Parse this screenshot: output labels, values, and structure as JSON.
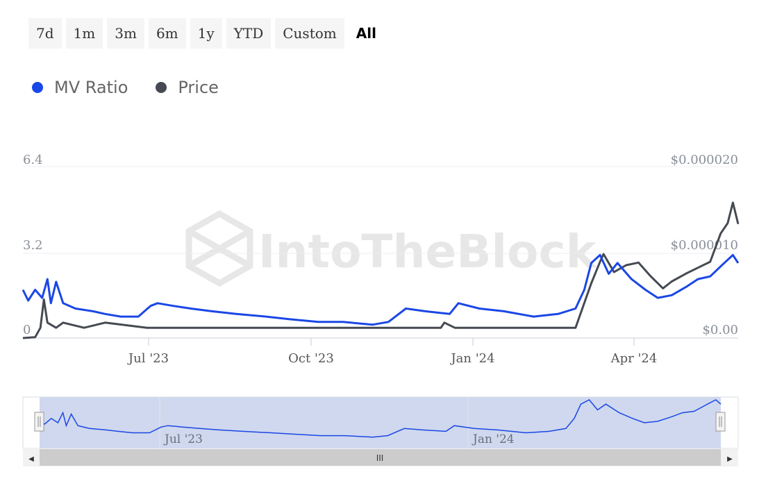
{
  "range_selector": {
    "buttons": [
      "7d",
      "1m",
      "3m",
      "6m",
      "1y",
      "YTD",
      "Custom",
      "All"
    ],
    "active": "All"
  },
  "watermark": "IntoTheBlock",
  "colors": {
    "mv_ratio": "#1a47e5",
    "price": "#454a52",
    "navigator_fill": "#cfd8ee"
  },
  "chart_data": {
    "type": "line",
    "x_tick_labels": [
      "Jul '23",
      "Oct '23",
      "Jan '24",
      "Apr '24"
    ],
    "y_left": {
      "ticks": [
        "0",
        "3.2",
        "6.4"
      ],
      "range": [
        0,
        6.4
      ]
    },
    "y_right": {
      "ticks": [
        "$0.00",
        "$0.000010",
        "$0.000020"
      ],
      "range": [
        0,
        2e-05
      ]
    },
    "series": [
      {
        "name": "MV Ratio",
        "axis": "left",
        "x": [
          "2023-04-15",
          "2023-04-18",
          "2023-04-22",
          "2023-04-26",
          "2023-04-29",
          "2023-05-01",
          "2023-05-04",
          "2023-05-08",
          "2023-05-15",
          "2023-05-25",
          "2023-06-01",
          "2023-06-10",
          "2023-06-20",
          "2023-06-27",
          "2023-07-01",
          "2023-07-10",
          "2023-07-20",
          "2023-08-01",
          "2023-08-15",
          "2023-09-01",
          "2023-09-15",
          "2023-10-01",
          "2023-10-15",
          "2023-11-01",
          "2023-11-10",
          "2023-11-20",
          "2023-12-01",
          "2023-12-15",
          "2023-12-20",
          "2024-01-01",
          "2024-01-15",
          "2024-02-01",
          "2024-02-15",
          "2024-02-25",
          "2024-03-01",
          "2024-03-05",
          "2024-03-10",
          "2024-03-15",
          "2024-03-20",
          "2024-03-28",
          "2024-04-05",
          "2024-04-12",
          "2024-04-20",
          "2024-04-28",
          "2024-05-05",
          "2024-05-12",
          "2024-05-20",
          "2024-05-25",
          "2024-05-28"
        ],
        "values": [
          1.8,
          1.4,
          1.8,
          1.5,
          2.2,
          1.3,
          2.1,
          1.3,
          1.1,
          1.0,
          0.9,
          0.8,
          0.8,
          1.2,
          1.3,
          1.2,
          1.1,
          1.0,
          0.9,
          0.8,
          0.7,
          0.6,
          0.6,
          0.5,
          0.6,
          1.1,
          1.0,
          0.9,
          1.3,
          1.1,
          1.0,
          0.8,
          0.9,
          1.1,
          1.8,
          2.8,
          3.1,
          2.4,
          2.8,
          2.2,
          1.8,
          1.5,
          1.6,
          1.9,
          2.2,
          2.3,
          2.8,
          3.1,
          2.8
        ]
      },
      {
        "name": "Price",
        "axis": "right",
        "x": [
          "2023-04-15",
          "2023-04-22",
          "2023-04-25",
          "2023-04-27",
          "2023-04-29",
          "2023-05-04",
          "2023-05-08",
          "2023-05-20",
          "2023-06-01",
          "2023-06-25",
          "2023-06-28",
          "2023-07-20",
          "2023-09-15",
          "2023-11-01",
          "2023-12-10",
          "2023-12-12",
          "2023-12-18",
          "2023-12-28",
          "2024-01-01",
          "2024-02-25",
          "2024-03-05",
          "2024-03-10",
          "2024-03-12",
          "2024-03-18",
          "2024-03-25",
          "2024-04-01",
          "2024-04-08",
          "2024-04-15",
          "2024-04-20",
          "2024-04-28",
          "2024-05-05",
          "2024-05-12",
          "2024-05-18",
          "2024-05-22",
          "2024-05-25",
          "2024-05-28"
        ],
        "values": [
          0,
          1e-07,
          1.2e-06,
          4.5e-06,
          1.8e-06,
          1.2e-06,
          1.8e-06,
          1.2e-06,
          1.8e-06,
          1.2e-06,
          1.2e-06,
          1.2e-06,
          1.2e-06,
          1.2e-06,
          1.2e-06,
          1.8e-06,
          1.2e-06,
          1.2e-06,
          1.2e-06,
          1.2e-06,
          6.4e-06,
          8.9e-06,
          9.8e-06,
          7.7e-06,
          8.5e-06,
          8.8e-06,
          7.2e-06,
          5.8e-06,
          6.6e-06,
          7.5e-06,
          8.2e-06,
          8.9e-06,
          1.22e-05,
          1.34e-05,
          1.58e-05,
          1.33e-05
        ]
      }
    ],
    "x_range": [
      "2023-04-15",
      "2024-05-28"
    ],
    "grid": "horizontal",
    "legend": "top-left"
  },
  "navigator": {
    "labels": [
      "Jul '23",
      "Jan '24"
    ],
    "scrollbar_grip": "III",
    "left_arrow": "◀",
    "right_arrow": "▶"
  }
}
